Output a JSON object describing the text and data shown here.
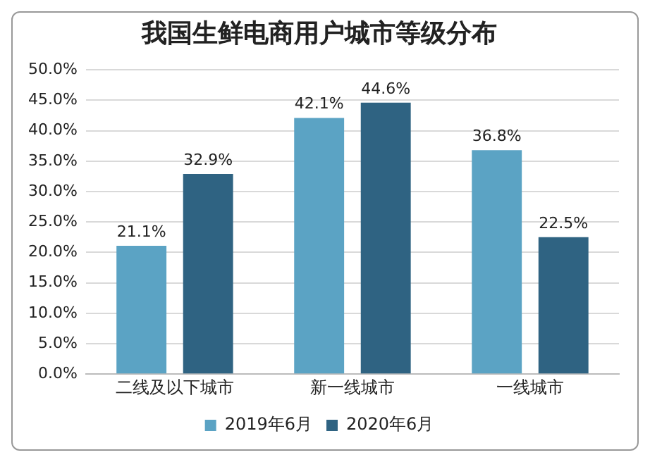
{
  "chart_data": {
    "type": "bar",
    "title": "我国生鲜电商用户城市等级分布",
    "categories": [
      "二线及以下城市",
      "新一线城市",
      "一线城市"
    ],
    "series": [
      {
        "name": "2019年6月",
        "color": "#5ba3c4",
        "values": [
          21.1,
          42.1,
          36.8
        ],
        "value_labels": [
          "21.1%",
          "42.1%",
          "36.8%"
        ]
      },
      {
        "name": "2020年6月",
        "color": "#2f6382",
        "values": [
          32.9,
          44.6,
          22.5
        ],
        "value_labels": [
          "32.9%",
          "44.6%",
          "22.5%"
        ]
      }
    ],
    "ylim": [
      0,
      50
    ],
    "yticks": [
      {
        "value": 0,
        "label": "0.0%"
      },
      {
        "value": 5,
        "label": "5.0%"
      },
      {
        "value": 10,
        "label": "10.0%"
      },
      {
        "value": 15,
        "label": "15.0%"
      },
      {
        "value": 20,
        "label": "20.0%"
      },
      {
        "value": 25,
        "label": "25.0%"
      },
      {
        "value": 30,
        "label": "30.0%"
      },
      {
        "value": 35,
        "label": "35.0%"
      },
      {
        "value": 40,
        "label": "40.0%"
      },
      {
        "value": 45,
        "label": "45.0%"
      },
      {
        "value": 50,
        "label": "50.0%"
      }
    ],
    "grid": "y",
    "legend": "bottom"
  }
}
